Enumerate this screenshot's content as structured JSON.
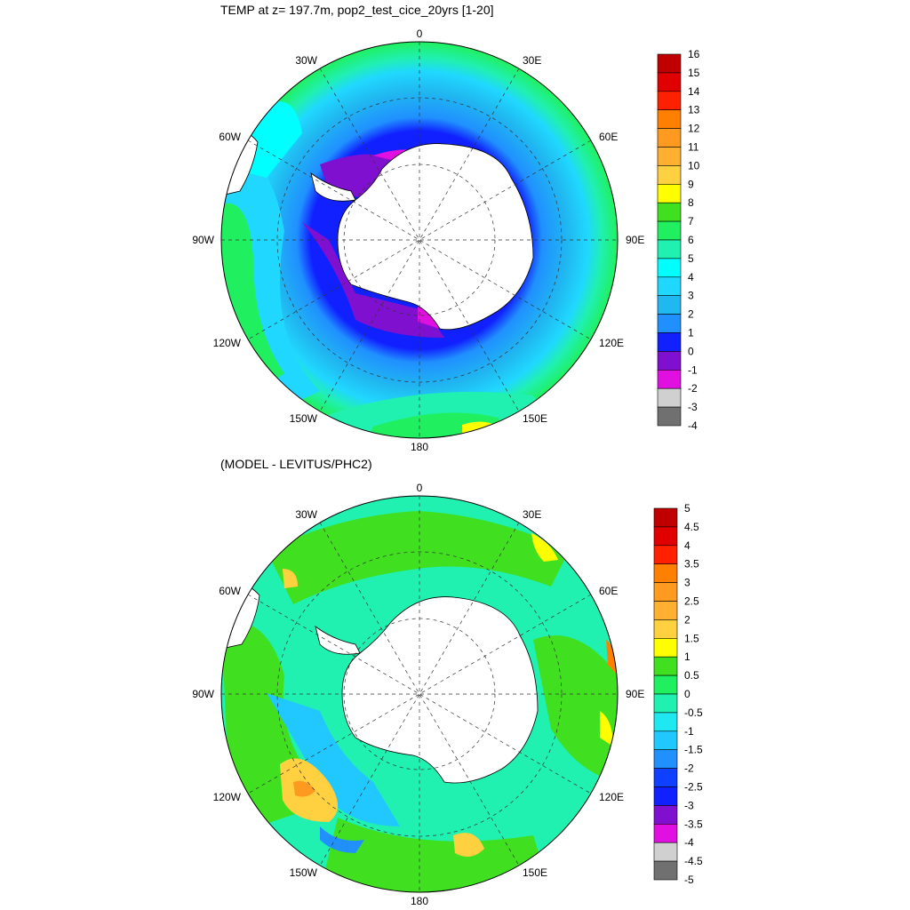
{
  "panels": [
    {
      "title": "TEMP at z= 197.7m, pop2_test_cice_20yrs [1-20]",
      "lon_labels": {
        "top": "0",
        "bottom": "180",
        "left": "90W",
        "right": "90E",
        "nw": "30W",
        "ne": "30E",
        "wnw": "60W",
        "ene": "60E",
        "wsw": "120W",
        "ese": "120E",
        "sw": "150W",
        "se": "150E"
      },
      "colorbar": {
        "labels": [
          "16",
          "15",
          "14",
          "13",
          "12",
          "11",
          "10",
          "9",
          "8",
          "7",
          "6",
          "5",
          "4",
          "3",
          "2",
          "1",
          "0",
          "-1",
          "-2",
          "-3",
          "-4"
        ],
        "colors": [
          "#c00000",
          "#e00000",
          "#ff2000",
          "#ff8000",
          "#ff9a20",
          "#ffb030",
          "#ffd040",
          "#ffff00",
          "#40e020",
          "#20f060",
          "#20f0b0",
          "#00ffff",
          "#20d8ff",
          "#20b8f0",
          "#2090ff",
          "#1020ff",
          "#8010d0",
          "#e010e0",
          "#d0d0d0",
          "#707070"
        ]
      }
    },
    {
      "title": "(MODEL - LEVITUS/PHC2)",
      "lon_labels": {
        "top": "0",
        "bottom": "180",
        "left": "90W",
        "right": "90E",
        "nw": "30W",
        "ne": "30E",
        "wnw": "60W",
        "ene": "60E",
        "wsw": "120W",
        "ese": "120E",
        "sw": "150W",
        "se": "150E"
      },
      "colorbar": {
        "labels": [
          "5",
          "4.5",
          "4",
          "3.5",
          "3",
          "2.5",
          "2",
          "1.5",
          "1",
          "0.5",
          "0",
          "-0.5",
          "-1",
          "-1.5",
          "-2",
          "-2.5",
          "-3",
          "-3.5",
          "-4",
          "-4.5",
          "-5"
        ],
        "colors": [
          "#c00000",
          "#e00000",
          "#ff2000",
          "#ff8000",
          "#ff9a20",
          "#ffb030",
          "#ffd040",
          "#ffff00",
          "#40e020",
          "#20f060",
          "#20f0b0",
          "#20e8f0",
          "#20c8ff",
          "#2090ff",
          "#1040ff",
          "#1020ff",
          "#8010d0",
          "#e010e0",
          "#d0d0d0",
          "#707070"
        ]
      }
    }
  ]
}
